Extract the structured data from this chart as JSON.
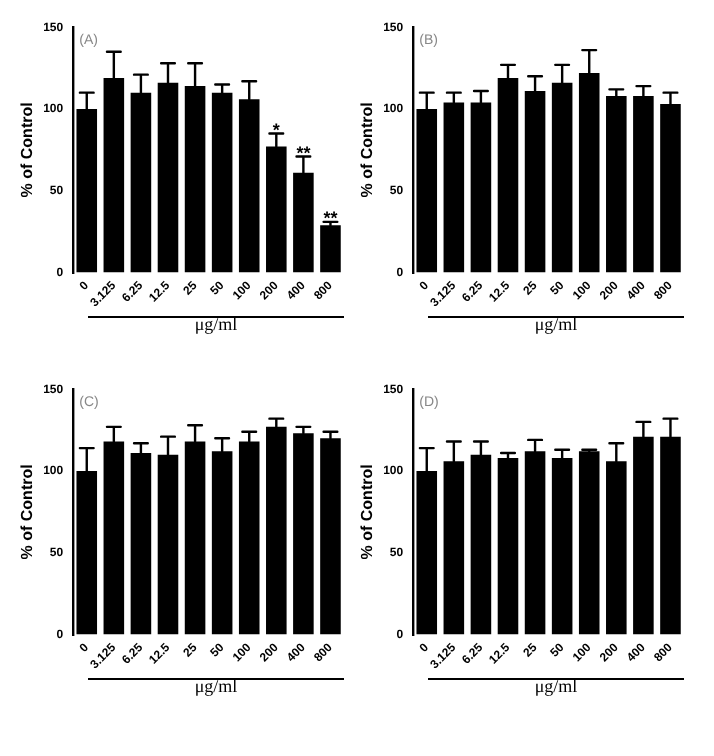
{
  "chart_data": [
    {
      "type": "bar",
      "categories": [
        "0",
        "3.125",
        "6.25",
        "12.5",
        "25",
        "50",
        "100",
        "200",
        "400",
        "800"
      ],
      "values": [
        100,
        119,
        110,
        116,
        114,
        110,
        106,
        77,
        61,
        29
      ],
      "errors": [
        10,
        16,
        11,
        12,
        14,
        5,
        11,
        8,
        10,
        2
      ],
      "color": "#000000",
      "ylabel": "% of Control",
      "xlabel": "μg/ml",
      "ylim": [
        0,
        150
      ],
      "yticks": [
        0,
        50,
        100,
        150
      ],
      "grid": false,
      "legend": false,
      "annotations": [
        "(A)",
        {
          "text": "*",
          "x": "200",
          "y": 86
        },
        {
          "text": "**",
          "x": "400",
          "y": 72
        },
        {
          "text": "**",
          "x": "800",
          "y": 32
        }
      ]
    },
    {
      "type": "bar",
      "categories": [
        "0",
        "3.125",
        "6.25",
        "12.5",
        "25",
        "50",
        "100",
        "200",
        "400",
        "800"
      ],
      "values": [
        100,
        104,
        104,
        119,
        111,
        116,
        122,
        108,
        108,
        103
      ],
      "errors": [
        10,
        6,
        7,
        8,
        9,
        11,
        14,
        4,
        6,
        7
      ],
      "color": "#000000",
      "ylabel": "% of Control",
      "xlabel": "μg/ml",
      "ylim": [
        0,
        150
      ],
      "yticks": [
        0,
        50,
        100,
        150
      ],
      "grid": false,
      "legend": false,
      "annotations": [
        "(B)"
      ]
    },
    {
      "type": "bar",
      "categories": [
        "0",
        "3.125",
        "6.25",
        "12.5",
        "25",
        "50",
        "100",
        "200",
        "400",
        "800"
      ],
      "values": [
        100,
        118,
        111,
        110,
        118,
        112,
        118,
        127,
        123,
        120
      ],
      "errors": [
        14,
        9,
        6,
        11,
        10,
        8,
        6,
        5,
        4,
        4
      ],
      "color": "#000000",
      "ylabel": "% of Control",
      "xlabel": "μg/ml",
      "ylim": [
        0,
        150
      ],
      "yticks": [
        0,
        50,
        100,
        150
      ],
      "grid": false,
      "legend": false,
      "annotations": [
        "(C)"
      ]
    },
    {
      "type": "bar",
      "categories": [
        "0",
        "3.125",
        "6.25",
        "12.5",
        "25",
        "50",
        "100",
        "200",
        "400",
        "800"
      ],
      "values": [
        100,
        106,
        110,
        108,
        112,
        108,
        112,
        106,
        121,
        121
      ],
      "errors": [
        14,
        12,
        8,
        3,
        7,
        5,
        1,
        11,
        9,
        11
      ],
      "color": "#000000",
      "ylabel": "% of Control",
      "xlabel": "μg/ml",
      "ylim": [
        0,
        150
      ],
      "yticks": [
        0,
        50,
        100,
        150
      ],
      "grid": false,
      "legend": false,
      "annotations": [
        "(D)"
      ]
    }
  ]
}
